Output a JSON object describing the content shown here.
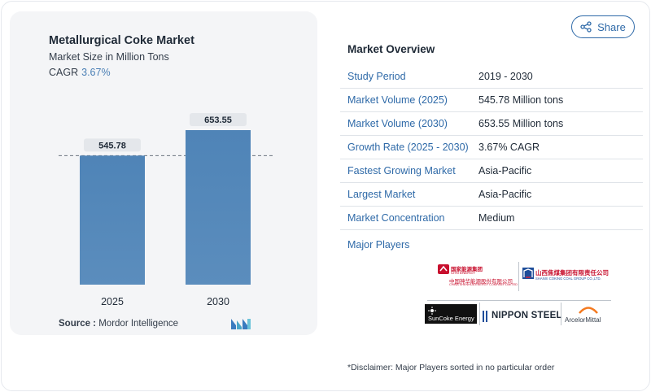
{
  "chart_data": {
    "type": "bar",
    "title": "Metallurgical Coke Market",
    "subtitle": "Market Size in Million Tons",
    "cagr_label": "CAGR",
    "cagr_value": "3.67%",
    "categories": [
      "2025",
      "2030"
    ],
    "values": [
      545.78,
      653.55
    ],
    "value_labels": [
      "545.78",
      "653.55"
    ],
    "bar_color": "#5b8dbd",
    "bar_color_top": "#4f84b7",
    "label_bg": "#e4e7eb",
    "grid": false
  },
  "source": {
    "label": "Source :",
    "value": "Mordor Intelligence"
  },
  "share_button": {
    "label": "Share",
    "icon": "share-icon"
  },
  "overview": {
    "title": "Market Overview",
    "rows": [
      {
        "key": "Study Period",
        "value": "2019 - 2030"
      },
      {
        "key": "Market Volume (2025)",
        "value": "545.78 Million tons"
      },
      {
        "key": "Market Volume (2030)",
        "value": "653.55 Million tons"
      },
      {
        "key": "Growth Rate (2025 - 2030)",
        "value": "3.67% CAGR"
      },
      {
        "key": "Fastest Growing Market",
        "value": "Asia-Pacific"
      },
      {
        "key": "Largest Market",
        "value": "Asia-Pacific"
      },
      {
        "key": "Market Concentration",
        "value": "Medium"
      }
    ]
  },
  "players": {
    "title": "Major Players",
    "logos": {
      "china_energy_cn": "国家能源集团",
      "china_energy_en": "CHN ENERGY",
      "china_shenhua_cn": "中国神华能源股份有限公司",
      "china_shenhua_en": "CHINA SHENHUA ENERGY COMPANY LIMITED",
      "shanxi_cn": "山西焦煤集团有限责任公司",
      "shanxi_en": "SHANXI COKING COAL GROUP CO.,LTD.",
      "suncoke": "SunCoke Energy",
      "nippon": "NIPPON STEEL",
      "arcelor": "ArcelorMittal"
    }
  },
  "disclaimer": "*Disclaimer: Major Players sorted in no particular order"
}
